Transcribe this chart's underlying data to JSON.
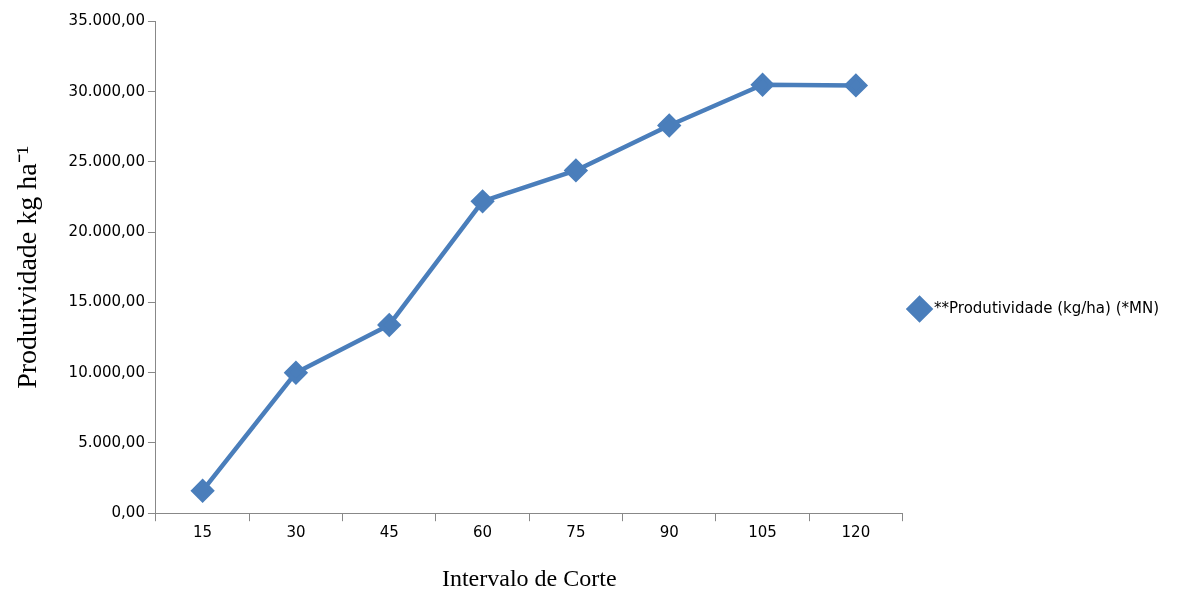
{
  "chart_data": {
    "type": "line",
    "xlabel": "Intervalo de Corte",
    "ylabel": "Produtividade kg ha⁻¹",
    "categories": [
      "15",
      "30",
      "45",
      "60",
      "75",
      "90",
      "105",
      "120"
    ],
    "series": [
      {
        "name": "**Produtividade (kg/ha) (*MN)",
        "color": "#4a7ebb",
        "values": [
          1600,
          10000,
          13400,
          22200,
          24400,
          27600,
          30500,
          30450
        ]
      }
    ],
    "ylim": [
      0,
      35000
    ],
    "yticks": [
      {
        "value": 0,
        "label": "0,00"
      },
      {
        "value": 5000,
        "label": "5.000,00"
      },
      {
        "value": 10000,
        "label": "10.000,00"
      },
      {
        "value": 15000,
        "label": "15.000,00"
      },
      {
        "value": 20000,
        "label": "20.000,00"
      },
      {
        "value": 25000,
        "label": "25.000,00"
      },
      {
        "value": 30000,
        "label": "30.000,00"
      },
      {
        "value": 35000,
        "label": "35.000,00"
      }
    ],
    "grid": false,
    "legend": "right",
    "marker": "diamond",
    "line_style": "solid"
  }
}
